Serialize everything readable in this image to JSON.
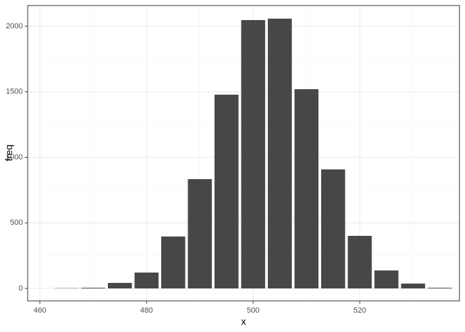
{
  "chart_data": {
    "type": "bar",
    "x_label": "x",
    "y_label": "freq",
    "x": [
      465,
      470,
      475,
      480,
      485,
      490,
      495,
      500,
      505,
      510,
      515,
      520,
      525,
      530,
      535
    ],
    "values": [
      2,
      5,
      42,
      121,
      396,
      834,
      1478,
      2047,
      2058,
      1520,
      908,
      401,
      137,
      37,
      5
    ],
    "color": "#474747",
    "xlim": [
      457.7,
      538.7
    ],
    "xticks": [
      460,
      480,
      500,
      520
    ],
    "ylim": [
      -95,
      2158
    ],
    "yticks": [
      0,
      500,
      1000,
      1500,
      2000
    ],
    "grid": true
  }
}
